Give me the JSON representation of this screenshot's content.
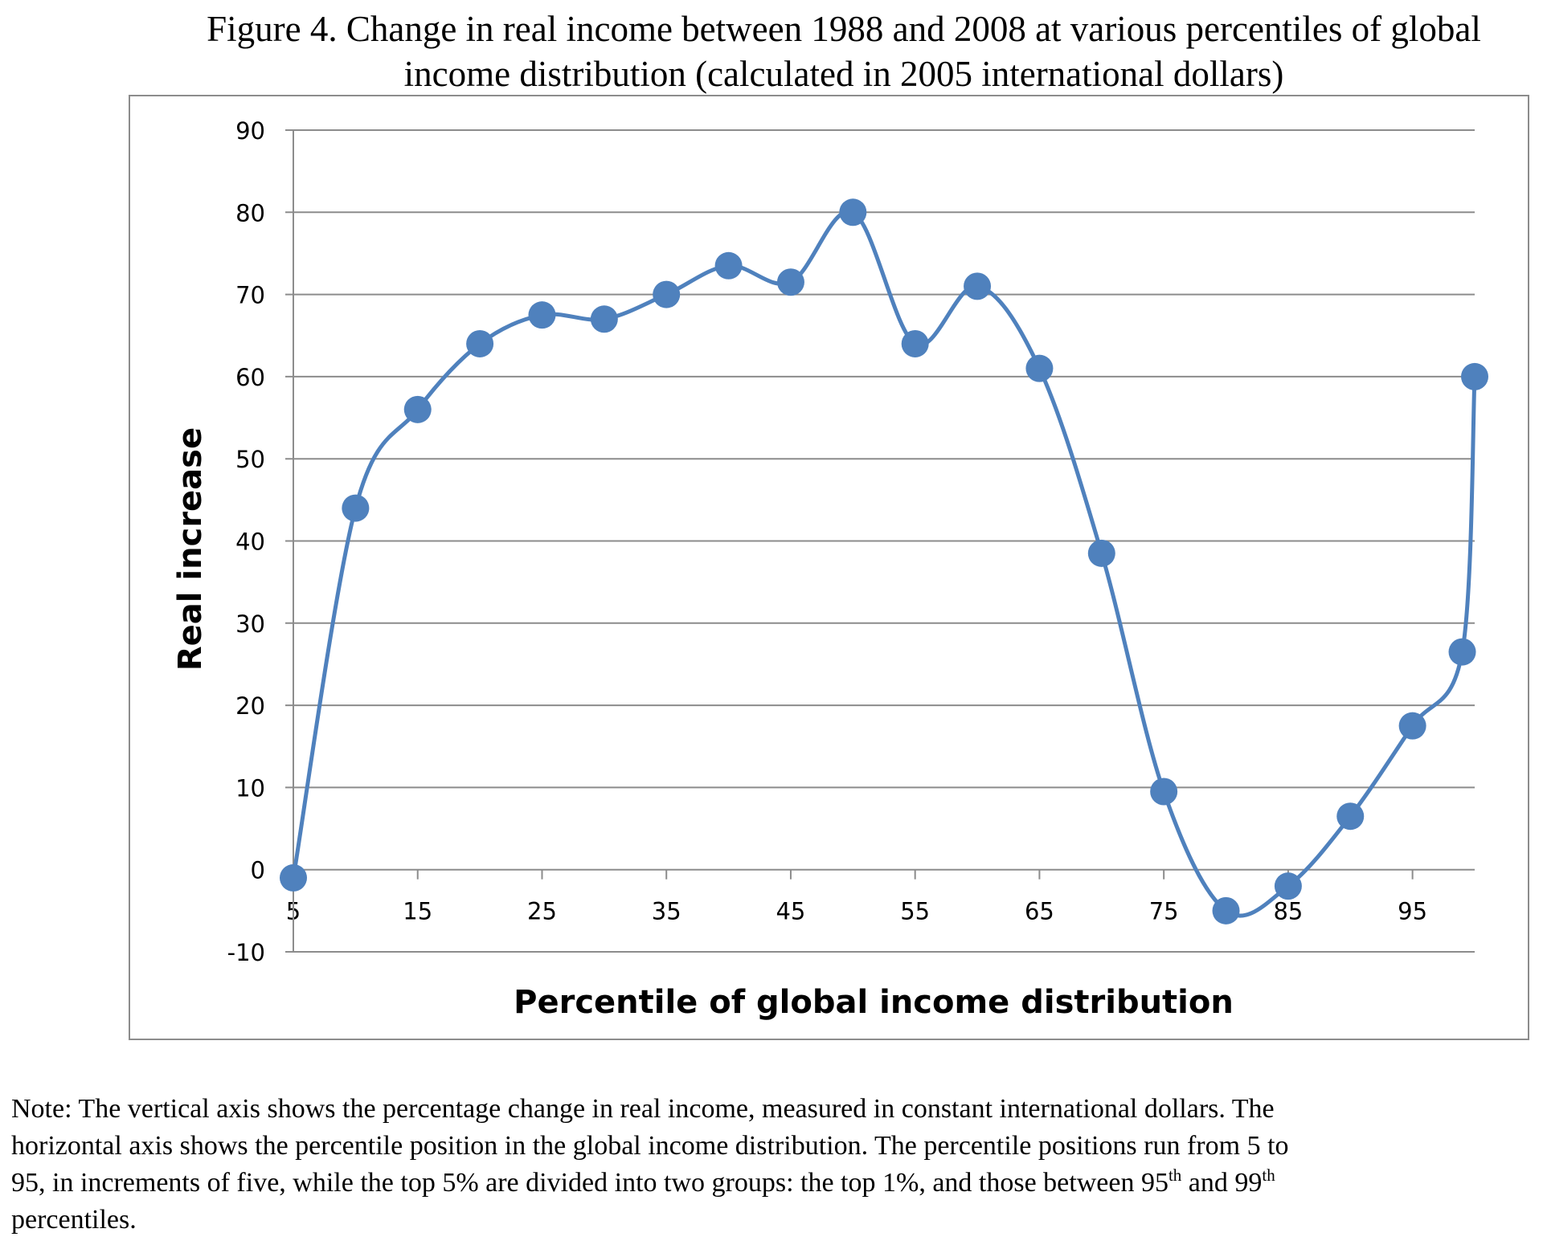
{
  "figure": {
    "title_line1": "Figure 4. Change in real income between 1988 and 2008 at various percentiles of global",
    "title_line2": "income distribution (calculated in 2005 international dollars)"
  },
  "chart_data": {
    "type": "line",
    "smooth": true,
    "title": "",
    "xlabel": "Percentile of global income distribution",
    "ylabel": "Real increase",
    "ylim": [
      -10,
      90
    ],
    "yticks": [
      -10,
      0,
      10,
      20,
      30,
      40,
      50,
      60,
      70,
      80,
      90
    ],
    "xticks": [
      5,
      15,
      25,
      35,
      45,
      55,
      65,
      75,
      85,
      95
    ],
    "xlim": [
      5,
      100
    ],
    "grid": true,
    "legend": "none",
    "series_color": "#4f81bd",
    "series": [
      {
        "x": [
          5,
          10,
          15,
          20,
          25,
          30,
          35,
          40,
          45,
          50,
          55,
          60,
          65,
          70,
          75,
          80,
          85,
          90,
          95,
          99,
          100
        ],
        "values": [
          -1,
          44,
          56,
          64,
          67.5,
          67,
          70,
          73.5,
          71.5,
          80,
          64,
          71,
          61,
          38.5,
          9.5,
          -5,
          -2,
          6.5,
          17.5,
          26.5,
          60
        ]
      }
    ]
  },
  "note": {
    "line1": "Note: The vertical axis shows the percentage change in real income, measured in constant international dollars. The",
    "line2": "horizontal axis shows the percentile position in the global income distribution. The percentile positions run from 5 to",
    "line3_a": "95, in increments of five, while the top 5% are divided into two groups: the top 1%, and those between 95",
    "sup1": "th",
    "line3_b": " and 99",
    "sup2": "th",
    "line4": "percentiles."
  }
}
